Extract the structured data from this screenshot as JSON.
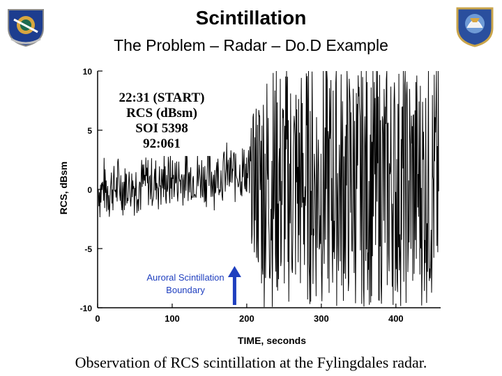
{
  "slide": {
    "title": "Scintillation",
    "subtitle": "The Problem – Radar – Do.D Example",
    "caption": "Observation of RCS scintillation at the Fylingdales radar."
  },
  "chart_data": {
    "type": "line",
    "xlabel": "TIME, seconds",
    "ylabel": "RCS, dBsm",
    "xlim": [
      0,
      460
    ],
    "ylim": [
      -10,
      10
    ],
    "x_ticks": [
      "0",
      "100",
      "200",
      "300",
      "400"
    ],
    "y_ticks": [
      "10",
      "5",
      "0",
      "-5",
      "-10"
    ],
    "inset_text": [
      "22:31 (START)",
      "RCS (dBsm)",
      "SOI 5398",
      "92:061"
    ],
    "annotation": {
      "label_line1": "Auroral Scintillation",
      "label_line2": "Boundary",
      "x": 200,
      "color": "#1f3fbf"
    },
    "series": [
      {
        "segment": "quiet",
        "x_range": [
          0,
          200
        ],
        "approx_center_dBsm": [
          0,
          2
        ],
        "approx_peak_to_peak_dBsm": 3
      },
      {
        "segment": "scintillating",
        "x_range": [
          200,
          460
        ],
        "approx_min_dBsm": -10,
        "approx_max_dBsm": 10
      }
    ]
  },
  "colors": {
    "trace": "#000000",
    "arrow": "#1f3fbf",
    "annotation_text": "#1f3fbf"
  }
}
